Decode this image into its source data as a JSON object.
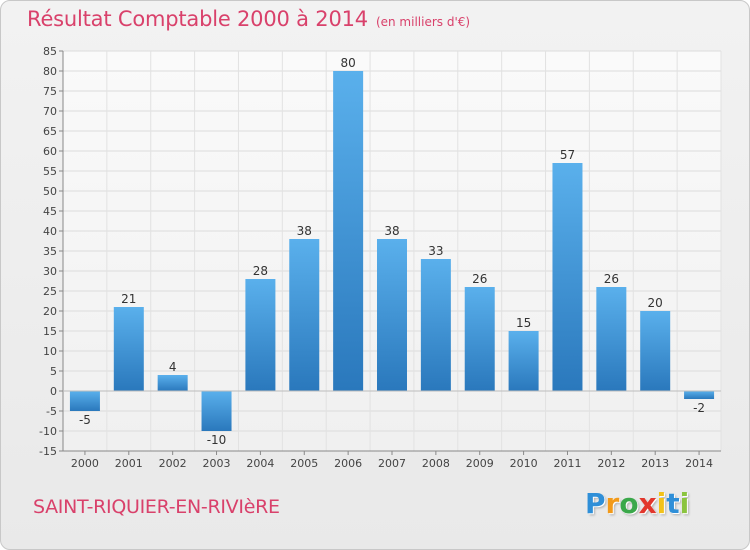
{
  "header": {
    "title": "Résultat Comptable 2000 à 2014",
    "subtitle": "(en milliers d'€)"
  },
  "footer": {
    "commune": "SAINT-RIQUIER-EN-RIVIèRE",
    "logo": {
      "letters": [
        "P",
        "r",
        "o",
        "x",
        "i",
        "t",
        "i"
      ],
      "colors": [
        "#2f8fd8",
        "#f29a1a",
        "#3aa84a",
        "#e2372c",
        "#f2c21a",
        "#2f8fd8",
        "#8bc43f"
      ]
    }
  },
  "chart_data": {
    "type": "bar",
    "title": "Résultat Comptable 2000 à 2014",
    "subtitle": "(en milliers d'€)",
    "xlabel": "",
    "ylabel": "",
    "categories": [
      "2000",
      "2001",
      "2002",
      "2003",
      "2004",
      "2005",
      "2006",
      "2007",
      "2008",
      "2009",
      "2010",
      "2011",
      "2012",
      "2013",
      "2014"
    ],
    "values": [
      -5,
      21,
      4,
      -10,
      28,
      38,
      80,
      38,
      33,
      26,
      15,
      57,
      26,
      20,
      -2
    ],
    "ylim": [
      -15,
      85
    ],
    "yticks": [
      "-15",
      "-10",
      "-5",
      "0",
      "5",
      "10",
      "15",
      "20",
      "25",
      "30",
      "35",
      "40",
      "45",
      "50",
      "55",
      "60",
      "65",
      "70",
      "75",
      "80",
      "85"
    ],
    "grid": true,
    "bar_color": "#3c8fd4"
  }
}
